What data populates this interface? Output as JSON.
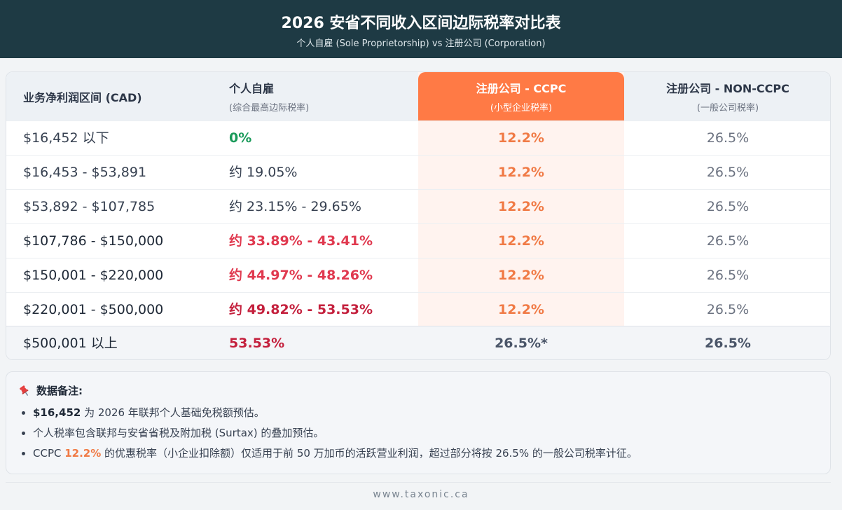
{
  "header": {
    "title": "2026 安省不同收入区间边际税率对比表",
    "subtitle": "个人自雇 (Sole Proprietorship) vs 注册公司 (Corporation)"
  },
  "table": {
    "columns": [
      {
        "label": "业务净利润区间 (CAD)",
        "sub": ""
      },
      {
        "label": "个人自雇",
        "sub": "(综合最高边际税率)"
      },
      {
        "label": "注册公司 - CCPC",
        "sub": "(小型企业税率)"
      },
      {
        "label": "注册公司 - NON-CCPC",
        "sub": "(一般公司税率)"
      }
    ],
    "rows": [
      {
        "range": "$16,452 以下",
        "personal": "0%",
        "ccpc": "12.2%",
        "nonccpc": "26.5%"
      },
      {
        "range": "$16,453 - $53,891",
        "personal": "约 19.05%",
        "ccpc": "12.2%",
        "nonccpc": "26.5%"
      },
      {
        "range": "$53,892 - $107,785",
        "personal": "约 23.15% - 29.65%",
        "ccpc": "12.2%",
        "nonccpc": "26.5%"
      },
      {
        "range": "$107,786 - $150,000",
        "personal": "约 33.89% - 43.41%",
        "ccpc": "12.2%",
        "nonccpc": "26.5%"
      },
      {
        "range": "$150,001 - $220,000",
        "personal": "约 44.97% - 48.26%",
        "ccpc": "12.2%",
        "nonccpc": "26.5%"
      },
      {
        "range": "$220,001 - $500,000",
        "personal": "约 49.82% - 53.53%",
        "ccpc": "12.2%",
        "nonccpc": "26.5%"
      },
      {
        "range": "$500,001 以上",
        "personal": "53.53%",
        "ccpc": "26.5%*",
        "nonccpc": "26.5%"
      }
    ]
  },
  "notes": {
    "title": "数据备注:",
    "icon": "pushpin-icon",
    "items": [
      {
        "strong": "$16,452",
        "text": " 为 2026 年联邦个人基础免税额预估。"
      },
      {
        "text": "个人税率包含联邦与安省省税及附加税 (Surtax) 的叠加预估。"
      },
      {
        "prefix": "CCPC ",
        "highlight": "12.2%",
        "text": " 的优惠税率（小企业扣除额）仅适用于前 50 万加币的活跃营业利润，超过部分将按 26.5% 的一般公司税率计征。"
      }
    ]
  },
  "footer": {
    "site": "www.taxonic.ca"
  },
  "colors": {
    "header_bg": "#1e3a44",
    "ccpc_accent": "#ff7a45",
    "green": "#1a9a5a",
    "red": "#e0394f",
    "dark_red": "#c4203d"
  }
}
